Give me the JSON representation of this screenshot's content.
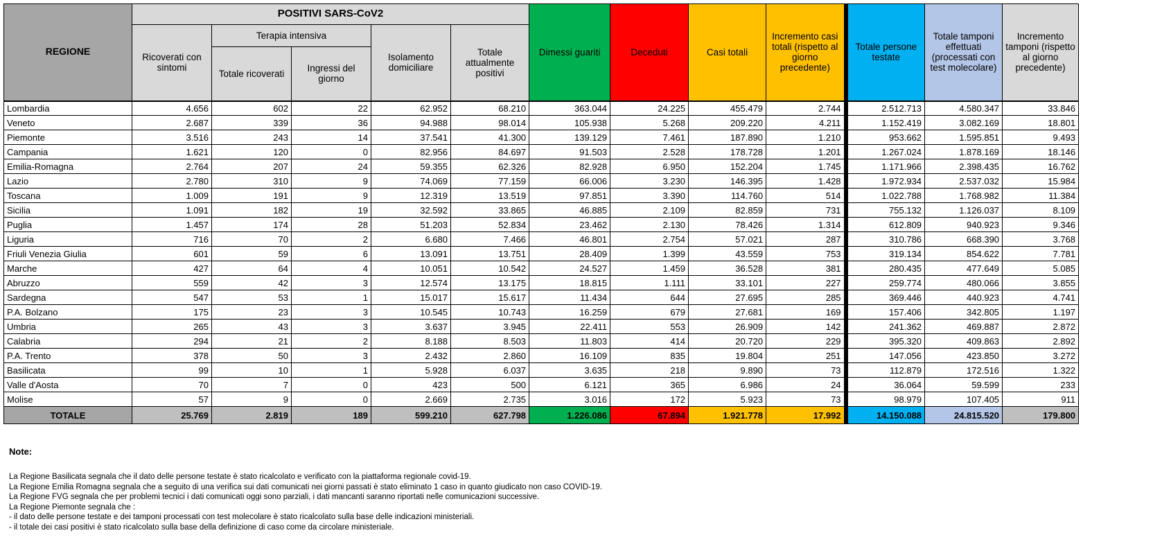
{
  "header": {
    "regione": "REGIONE",
    "positivi_group": "POSITIVI SARS-CoV2",
    "terapia_group": "Terapia intensiva",
    "cols": {
      "ricoverati": "Ricoverati con sintomi",
      "totale_ricoverati": "Totale ricoverati",
      "ingressi": "Ingressi del giorno",
      "isolamento": "Isolamento domiciliare",
      "totale_positivi": "Totale attualmente positivi",
      "dimessi": "Dimessi guariti",
      "deceduti": "Deceduti",
      "casi_totali": "Casi totali",
      "incremento_casi": "Incremento casi totali (rispetto al giorno precedente)",
      "persone_testate": "Totale persone testate",
      "tamponi": "Totale tamponi effettuati (processati con test molecolare)",
      "incremento_tamponi": "Incremento tamponi (rispetto al giorno precedente)"
    }
  },
  "rows": [
    {
      "regione": "Lombardia",
      "values": [
        "4.656",
        "602",
        "22",
        "62.952",
        "68.210",
        "363.044",
        "24.225",
        "455.479",
        "2.744",
        "2.512.713",
        "4.580.347",
        "33.846"
      ]
    },
    {
      "regione": "Veneto",
      "values": [
        "2.687",
        "339",
        "36",
        "94.988",
        "98.014",
        "105.938",
        "5.268",
        "209.220",
        "4.211",
        "1.152.419",
        "3.082.169",
        "18.801"
      ]
    },
    {
      "regione": "Piemonte",
      "values": [
        "3.516",
        "243",
        "14",
        "37.541",
        "41.300",
        "139.129",
        "7.461",
        "187.890",
        "1.210",
        "953.662",
        "1.595.851",
        "9.493"
      ]
    },
    {
      "regione": "Campania",
      "values": [
        "1.621",
        "120",
        "0",
        "82.956",
        "84.697",
        "91.503",
        "2.528",
        "178.728",
        "1.201",
        "1.267.024",
        "1.878.169",
        "18.146"
      ]
    },
    {
      "regione": "Emilia-Romagna",
      "values": [
        "2.764",
        "207",
        "24",
        "59.355",
        "62.326",
        "82.928",
        "6.950",
        "152.204",
        "1.745",
        "1.171.966",
        "2.398.435",
        "16.762"
      ]
    },
    {
      "regione": "Lazio",
      "values": [
        "2.780",
        "310",
        "9",
        "74.069",
        "77.159",
        "66.006",
        "3.230",
        "146.395",
        "1.428",
        "1.972.934",
        "2.537.032",
        "15.984"
      ]
    },
    {
      "regione": "Toscana",
      "values": [
        "1.009",
        "191",
        "9",
        "12.319",
        "13.519",
        "97.851",
        "3.390",
        "114.760",
        "514",
        "1.022.788",
        "1.768.982",
        "11.384"
      ]
    },
    {
      "regione": "Sicilia",
      "values": [
        "1.091",
        "182",
        "19",
        "32.592",
        "33.865",
        "46.885",
        "2.109",
        "82.859",
        "731",
        "755.132",
        "1.126.037",
        "8.109"
      ]
    },
    {
      "regione": "Puglia",
      "values": [
        "1.457",
        "174",
        "28",
        "51.203",
        "52.834",
        "23.462",
        "2.130",
        "78.426",
        "1.314",
        "612.809",
        "940.923",
        "9.346"
      ]
    },
    {
      "regione": "Liguria",
      "values": [
        "716",
        "70",
        "2",
        "6.680",
        "7.466",
        "46.801",
        "2.754",
        "57.021",
        "287",
        "310.786",
        "668.390",
        "3.768"
      ]
    },
    {
      "regione": "Friuli Venezia Giulia",
      "values": [
        "601",
        "59",
        "6",
        "13.091",
        "13.751",
        "28.409",
        "1.399",
        "43.559",
        "753",
        "319.134",
        "854.622",
        "7.781"
      ]
    },
    {
      "regione": "Marche",
      "values": [
        "427",
        "64",
        "4",
        "10.051",
        "10.542",
        "24.527",
        "1.459",
        "36.528",
        "381",
        "280.435",
        "477.649",
        "5.085"
      ]
    },
    {
      "regione": "Abruzzo",
      "values": [
        "559",
        "42",
        "3",
        "12.574",
        "13.175",
        "18.815",
        "1.111",
        "33.101",
        "227",
        "259.774",
        "480.066",
        "3.855"
      ]
    },
    {
      "regione": "Sardegna",
      "values": [
        "547",
        "53",
        "1",
        "15.017",
        "15.617",
        "11.434",
        "644",
        "27.695",
        "285",
        "369.446",
        "440.923",
        "4.741"
      ]
    },
    {
      "regione": "P.A. Bolzano",
      "values": [
        "175",
        "23",
        "3",
        "10.545",
        "10.743",
        "16.259",
        "679",
        "27.681",
        "169",
        "157.406",
        "342.805",
        "1.197"
      ]
    },
    {
      "regione": "Umbria",
      "values": [
        "265",
        "43",
        "3",
        "3.637",
        "3.945",
        "22.411",
        "553",
        "26.909",
        "142",
        "241.362",
        "469.887",
        "2.872"
      ]
    },
    {
      "regione": "Calabria",
      "values": [
        "294",
        "21",
        "2",
        "8.188",
        "8.503",
        "11.803",
        "414",
        "20.720",
        "229",
        "395.320",
        "409.863",
        "2.892"
      ]
    },
    {
      "regione": "P.A. Trento",
      "values": [
        "378",
        "50",
        "3",
        "2.432",
        "2.860",
        "16.109",
        "835",
        "19.804",
        "251",
        "147.056",
        "423.850",
        "3.272"
      ]
    },
    {
      "regione": "Basilicata",
      "values": [
        "99",
        "10",
        "1",
        "5.928",
        "6.037",
        "3.635",
        "218",
        "9.890",
        "73",
        "112.879",
        "172.516",
        "1.322"
      ]
    },
    {
      "regione": "Valle d'Aosta",
      "values": [
        "70",
        "7",
        "0",
        "423",
        "500",
        "6.121",
        "365",
        "6.986",
        "24",
        "36.064",
        "59.599",
        "233"
      ]
    },
    {
      "regione": "Molise",
      "values": [
        "57",
        "9",
        "0",
        "2.669",
        "2.735",
        "3.016",
        "172",
        "5.923",
        "73",
        "98.979",
        "107.405",
        "911"
      ]
    }
  ],
  "totale": {
    "label": "TOTALE",
    "values": [
      "25.769",
      "2.819",
      "189",
      "599.210",
      "627.798",
      "1.226.086",
      "67.894",
      "1.921.778",
      "17.992",
      "14.150.088",
      "24.815.520",
      "179.800"
    ]
  },
  "notes": {
    "title": "Note:",
    "lines": [
      "La Regione Basilicata segnala che il dato delle persone testate è stato ricalcolato e verificato con la piattaforma regionale covid-19.",
      "La Regione Emilia Romagna segnala che a seguito di una verifica sui dati comunicati nei giorni passati è stato eliminato 1 caso in quanto giudicato non caso COVID-19.",
      "La Regione FVG segnala che per problemi tecnici i dati comunicati oggi sono parziali, i dati mancanti saranno riportati nelle comunicazioni successive.",
      "La Regione Piemonte segnala che :",
      "- il dato delle persone testate e dei tamponi processati con test molecolare è stato ricalcolato sulla base delle indicazioni ministeriali.",
      "- il totale dei casi positivi è stato ricalcolato sulla base della definizione di caso come da circolare ministeriale."
    ]
  },
  "colors": {
    "header_gray": "#D9D9D9",
    "regione_gray": "#A6A6A6",
    "totale_gray": "#BFBFBF",
    "green": "#00B050",
    "red": "#FF0000",
    "yellow": "#FFC000",
    "cyan": "#00B0F0",
    "light_blue": "#B4C6E7"
  }
}
